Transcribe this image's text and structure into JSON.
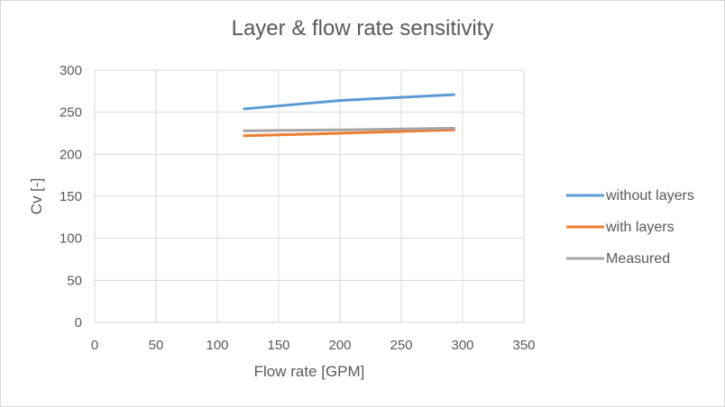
{
  "chart_data": {
    "type": "line",
    "title": "Layer & flow rate sensitivity",
    "xlabel": "Flow rate [GPM]",
    "ylabel": "Cv [-]",
    "xlim": [
      0,
      350
    ],
    "ylim": [
      0,
      300
    ],
    "xticks": [
      0,
      50,
      100,
      150,
      200,
      250,
      300,
      350
    ],
    "yticks": [
      0,
      50,
      100,
      150,
      200,
      250,
      300
    ],
    "grid": true,
    "legend_position": "right",
    "series": [
      {
        "name": "without layers",
        "color": "#5b9bd5",
        "x": [
          122,
          200,
          293
        ],
        "y": [
          254,
          264,
          271
        ]
      },
      {
        "name": "with layers",
        "color": "#ed7d31",
        "x": [
          122,
          200,
          293
        ],
        "y": [
          222,
          225,
          229
        ]
      },
      {
        "name": "Measured",
        "color": "#a5a5a5",
        "x": [
          122,
          200,
          293
        ],
        "y": [
          228,
          229,
          231
        ]
      }
    ]
  }
}
